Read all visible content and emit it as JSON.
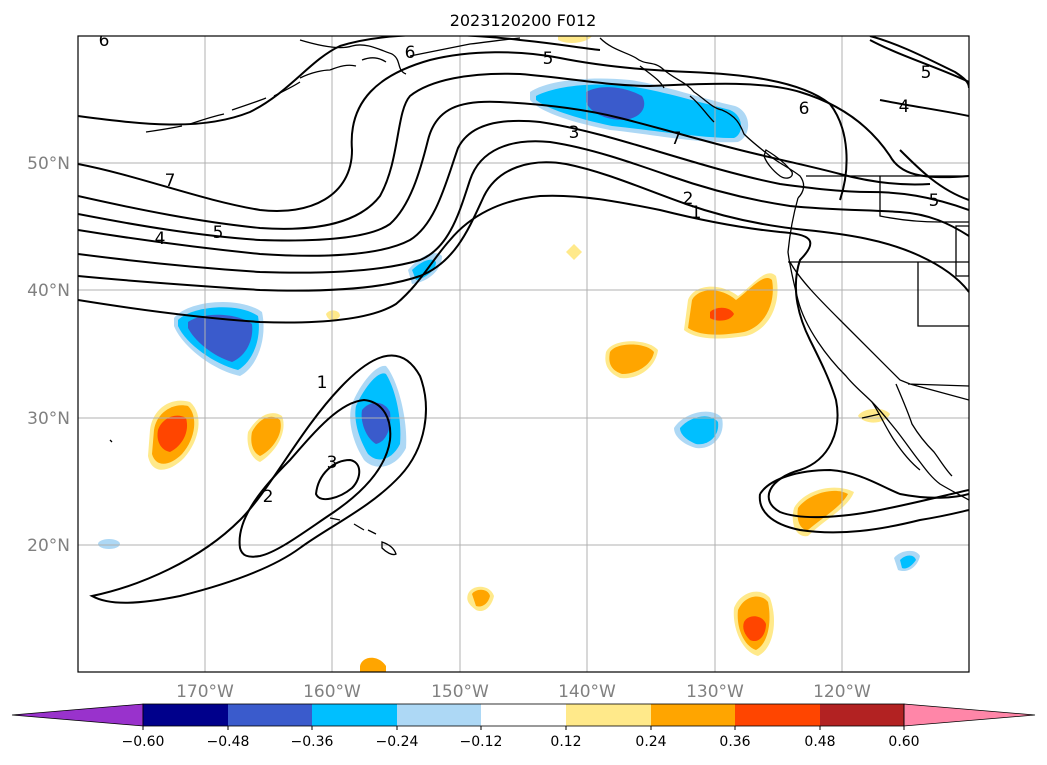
{
  "title": "2023120200 F012",
  "lat_labels": [
    "50°N",
    "40°N",
    "30°N",
    "20°N"
  ],
  "lon_labels": [
    "170°W",
    "160°W",
    "150°W",
    "140°W",
    "130°W",
    "120°W"
  ],
  "contour_labels": [
    "6",
    "6",
    "5",
    "5",
    "4",
    "6",
    "7",
    "4",
    "5",
    "3",
    "7",
    "2",
    "1",
    "5",
    "1",
    "3",
    "2"
  ],
  "colorbar": {
    "ticks": [
      "−0.60",
      "−0.48",
      "−0.36",
      "−0.24",
      "−0.12",
      "0.12",
      "0.24",
      "0.36",
      "0.48",
      "0.60"
    ],
    "colors": [
      "#9932cc",
      "#00008b",
      "#3a5bcc",
      "#00bfff",
      "#add8f5",
      "#ffffff",
      "#ffe98a",
      "#ffa500",
      "#ff4500",
      "#b22222",
      "#ff86a8"
    ]
  },
  "palette": {
    "coast": "#000000",
    "grid": "#b0b0b0",
    "contour": "#000000"
  }
}
